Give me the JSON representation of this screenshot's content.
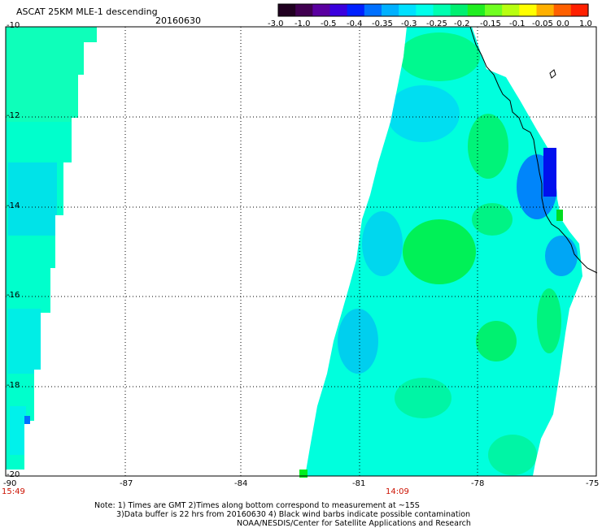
{
  "header": {
    "title": "ASCAT 25KM MLE-1 descending",
    "date": "20160630"
  },
  "colorbar": {
    "colors": [
      "#200020",
      "#400050",
      "#5a00a0",
      "#3a00dd",
      "#0020ff",
      "#0070ff",
      "#00b0ff",
      "#00e0ff",
      "#00ffea",
      "#00ffb0",
      "#00f070",
      "#20ee20",
      "#70ff20",
      "#b8ff10",
      "#ffff00",
      "#ffb000",
      "#ff6000",
      "#ff2000"
    ],
    "ticks": [
      "-3.0",
      "-1.0",
      "-0.5",
      "-0.4",
      "-0.35",
      "-0.3",
      "-0.25",
      "-0.2",
      "-0.15",
      "-0.1",
      "-0.05",
      "0.0",
      "1.0"
    ]
  },
  "map": {
    "lon_labels": [
      "-90",
      "-87",
      "-84",
      "-81",
      "-78",
      "-75"
    ],
    "lat_labels": [
      "-10",
      "-12",
      "-14",
      "-16",
      "-18",
      "-20"
    ],
    "time_labels": [
      "15:49",
      "14:09"
    ],
    "colors": {
      "base": "#00ffdd",
      "green": "#00ff55",
      "blue": "#0088ff",
      "deep_blue": "#0010ee",
      "coast": "#000000",
      "grid": "#000000",
      "time_text": "#cc1100"
    }
  },
  "footer": {
    "line1": "Note: 1) Times are GMT 2)Times along bottom correspond to measurement at ~15S",
    "line2": "3)Data buffer is 22 hrs from 20160630 4) Black wind barbs indicate possible contamination",
    "line3": "NOAA/NESDIS/Center for Satellite Applications and Research"
  }
}
